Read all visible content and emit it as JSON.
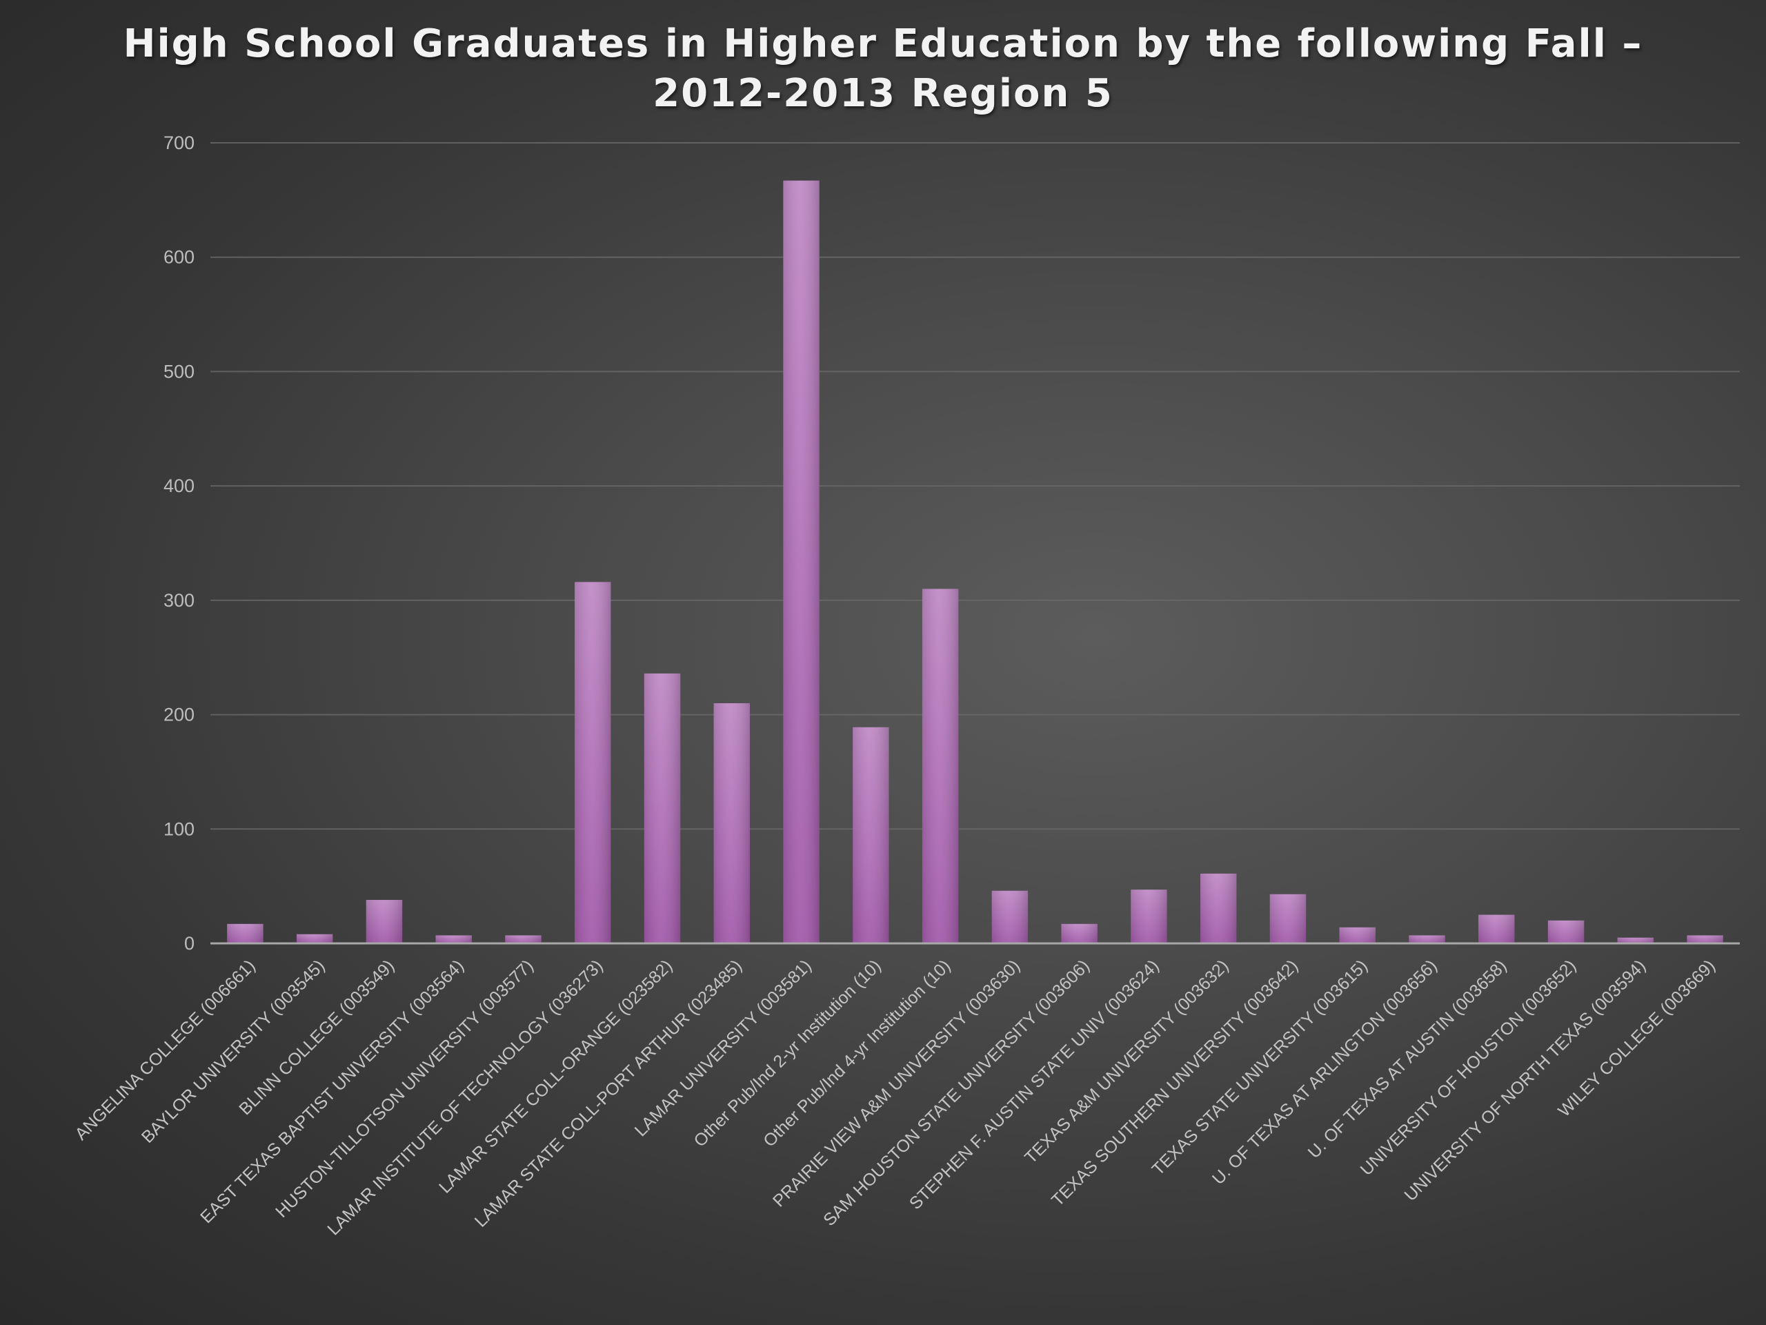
{
  "chart_data": {
    "type": "bar",
    "title_lines": [
      "High School Graduates in Higher Education by the following Fall –",
      "2012-2013 Region 5"
    ],
    "xlabel": "",
    "ylabel": "",
    "ylim": [
      0,
      700
    ],
    "yticks": [
      0,
      100,
      200,
      300,
      400,
      500,
      600,
      700
    ],
    "grid": true,
    "bar_color": "#b070b8",
    "categories": [
      "ANGELINA COLLEGE (006661)",
      "BAYLOR UNIVERSITY (003545)",
      "BLINN COLLEGE (003549)",
      "EAST TEXAS BAPTIST UNIVERSITY (003564)",
      "HUSTON-TILLOTSON UNIVERSITY (003577)",
      "LAMAR INSTITUTE OF TECHNOLOGY (036273)",
      "LAMAR STATE COLL-ORANGE (023582)",
      "LAMAR STATE COLL-PORT ARTHUR (023485)",
      "LAMAR UNIVERSITY (003581)",
      "Other Pub/Ind 2-yr Institution (10)",
      "Other Pub/Ind 4-yr Institution (10)",
      "PRAIRIE VIEW A&M UNIVERSITY (003630)",
      "SAM HOUSTON STATE UNIVERSITY (003606)",
      "STEPHEN F. AUSTIN STATE UNIV (003624)",
      "TEXAS A&M UNIVERSITY (003632)",
      "TEXAS SOUTHERN UNIVERSITY (003642)",
      "TEXAS STATE UNIVERSITY (003615)",
      "U. OF TEXAS AT ARLINGTON (003656)",
      "U. OF TEXAS AT AUSTIN (003658)",
      "UNIVERSITY OF HOUSTON (003652)",
      "UNIVERSITY OF NORTH TEXAS (003594)",
      "WILEY COLLEGE (003669)"
    ],
    "values": [
      17,
      8,
      38,
      7,
      7,
      316,
      236,
      210,
      667,
      189,
      310,
      46,
      17,
      47,
      61,
      43,
      14,
      7,
      25,
      20,
      5,
      7
    ]
  }
}
